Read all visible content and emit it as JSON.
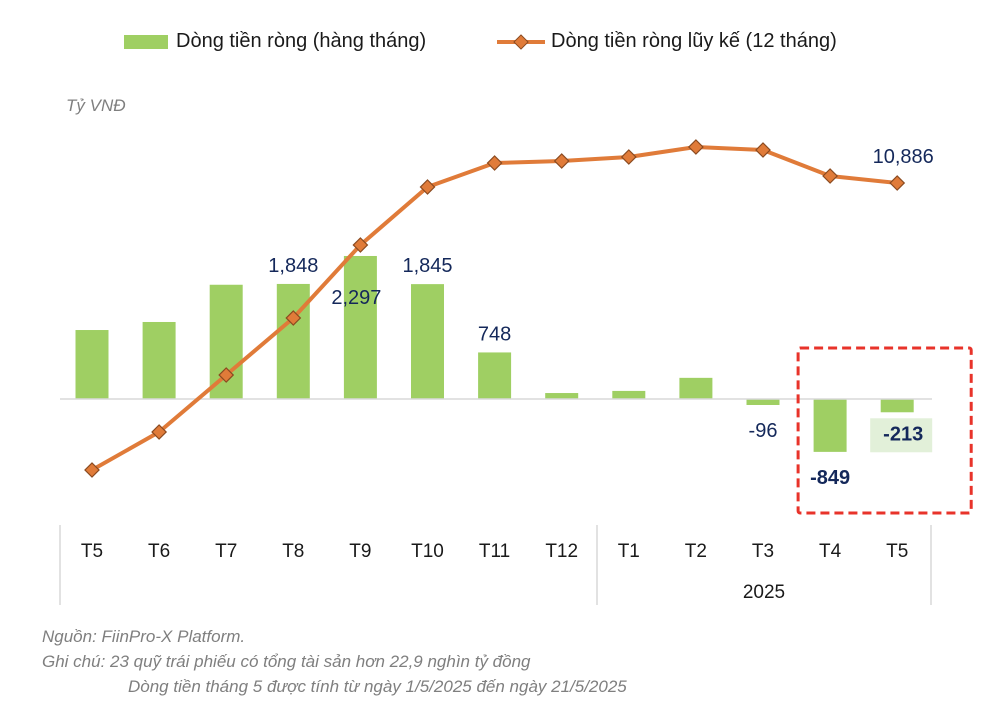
{
  "chart_data": {
    "type": "bar+line",
    "unit_label": "Tỷ VNĐ",
    "categories": [
      "T5",
      "T6",
      "T7",
      "T8",
      "T9",
      "T10",
      "T11",
      "T12",
      "T1",
      "T2",
      "T3",
      "T4",
      "T5"
    ],
    "year_group_label": "2025",
    "series": [
      {
        "name": "Dòng tiền ròng (hàng tháng)",
        "type": "bar",
        "color": "#9fcf63",
        "values": [
          1108,
          1237,
          1835,
          1848,
          2297,
          1845,
          748,
          96,
          130,
          340,
          -96,
          -849,
          -213
        ]
      },
      {
        "name": "Dòng tiền ròng lũy kế (12 tháng)",
        "type": "line",
        "color": "#e07b39",
        "marker": "diamond",
        "axis": "secondary",
        "values": [
          -2029,
          -319,
          2246,
          4811,
          8096,
          10706,
          11786,
          11876,
          12056,
          12506,
          12371,
          11201,
          10886
        ]
      }
    ],
    "data_labels": [
      {
        "index": 3,
        "text": "1,848",
        "bold": false
      },
      {
        "index": 4,
        "text": "2,297",
        "bold": false
      },
      {
        "index": 5,
        "text": "1,845",
        "bold": false
      },
      {
        "index": 6,
        "text": "748",
        "bold": false
      },
      {
        "index": 10,
        "text": "-96",
        "bold": false
      },
      {
        "index": 11,
        "text": "-849",
        "bold": true
      },
      {
        "index": 12,
        "text": "-213",
        "bold": true,
        "highlight": "#e2f0d9"
      }
    ],
    "line_label": {
      "index": 12,
      "text": "10,886"
    },
    "ylim": [
      -1943,
      4802
    ],
    "y2lim": [
      -4279,
      14621
    ],
    "highlight_box": {
      "from_index": 11,
      "to_index": 12,
      "color": "#e8332a",
      "style": "dashed"
    },
    "grid": false,
    "legend_position": "top"
  },
  "notes": {
    "source": "Nguồn: FiinPro-X Platform.",
    "note1": "Ghi chú: 23 quỹ trái phiếu có tổng tài sản hơn 22,9 nghìn tỷ đồng",
    "note2": "Dòng tiền tháng 5 được tính từ ngày 1/5/2025 đến ngày 21/5/2025"
  }
}
